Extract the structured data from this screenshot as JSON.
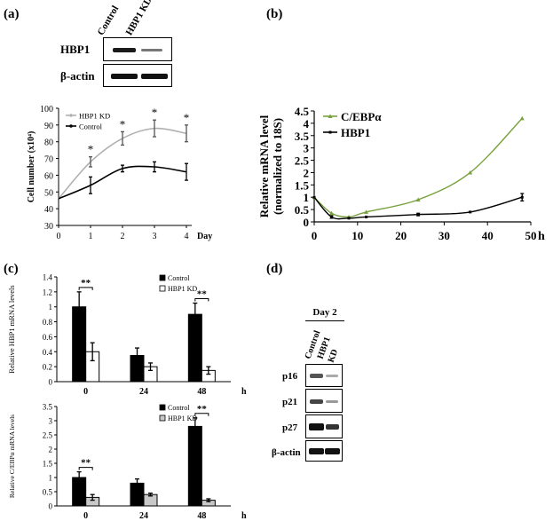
{
  "panels": {
    "a": {
      "label": "(a)",
      "blot": {
        "lanes": [
          "Control",
          "HBP1 KD"
        ],
        "rows": [
          "HBP1",
          "β-actin"
        ]
      }
    },
    "b": {
      "label": "(b)"
    },
    "c": {
      "label": "(c)"
    },
    "d": {
      "label": "(d)",
      "blot": {
        "header": "Day 2",
        "lanes": [
          "Control",
          "HBP1",
          "KD"
        ],
        "rows": [
          "p16",
          "p21",
          "p27",
          "β-actin"
        ]
      }
    }
  },
  "chart_data": [
    {
      "id": "a-growth",
      "type": "line",
      "xlabel": "Day",
      "ylabel": "Cell number (x10⁴)",
      "xlim": [
        0,
        4
      ],
      "ylim": [
        30,
        100
      ],
      "x_ticks": [
        "0",
        "1",
        "2",
        "3",
        "4"
      ],
      "y_ticks": [
        "30",
        "40",
        "50",
        "60",
        "70",
        "80",
        "90",
        "100"
      ],
      "x": [
        0,
        1,
        2,
        3,
        4
      ],
      "series": [
        {
          "name": "HBP1 KD",
          "color": "#b0b0b0",
          "values": [
            46,
            68,
            82,
            88,
            85
          ],
          "errors": [
            0,
            3,
            4,
            5,
            5
          ]
        },
        {
          "name": "Control",
          "color": "#000000",
          "values": [
            46,
            54,
            64,
            65,
            62
          ],
          "errors": [
            0,
            5,
            2,
            3,
            5
          ]
        }
      ],
      "annotations": [
        "*",
        "*",
        "*",
        "*"
      ],
      "legend": "top-left"
    },
    {
      "id": "b-mrna",
      "type": "line",
      "xlabel": "h",
      "ylabel_lines": [
        "Relative mRNA level",
        "(normalized to 18S)"
      ],
      "xlim": [
        0,
        50
      ],
      "ylim": [
        0,
        4.5
      ],
      "x_ticks": [
        "0",
        "10",
        "20",
        "30",
        "40",
        "50"
      ],
      "y_ticks": [
        "0",
        "0.5",
        "1",
        "1.5",
        "2",
        "2.5",
        "3",
        "3.5",
        "4",
        "4.5"
      ],
      "x": [
        0,
        4,
        8,
        12,
        24,
        36,
        48
      ],
      "series": [
        {
          "name": "C/EBPα",
          "color": "#77a13d",
          "values": [
            1.0,
            0.35,
            0.2,
            0.4,
            0.9,
            2.0,
            4.2
          ],
          "errors": [
            0,
            0,
            0,
            0,
            0,
            0,
            0
          ]
        },
        {
          "name": "HBP1",
          "color": "#000000",
          "values": [
            1.0,
            0.2,
            0.15,
            0.2,
            0.3,
            0.4,
            1.0
          ],
          "errors": [
            0,
            0.05,
            0,
            0,
            0.05,
            0,
            0.15
          ]
        }
      ],
      "legend": "top-left"
    },
    {
      "id": "c-hbp1",
      "type": "bar",
      "xlabel": "h",
      "ylabel": "Relative HBP1 mRNA levels",
      "ylim": [
        0,
        1.4
      ],
      "y_ticks": [
        "0",
        "0.2",
        "0.4",
        "0.6",
        "0.8",
        "1",
        "1.2",
        "1.4"
      ],
      "categories": [
        "0",
        "24",
        "48"
      ],
      "series": [
        {
          "name": "Control",
          "color": "#000000",
          "values": [
            1.0,
            0.35,
            0.9
          ],
          "errors": [
            0.2,
            0.1,
            0.15
          ]
        },
        {
          "name": "HBP1 KD",
          "color": "#ffffff",
          "values": [
            0.4,
            0.2,
            0.15
          ],
          "errors": [
            0.12,
            0.05,
            0.05
          ]
        }
      ],
      "annotations": [
        "**",
        "**"
      ],
      "legend": "top-right"
    },
    {
      "id": "c-cebpa",
      "type": "bar",
      "xlabel": "h",
      "ylabel": "Relative C/EBPα mRNA levels",
      "ylim": [
        0,
        3.5
      ],
      "y_ticks": [
        "0",
        "0.5",
        "1",
        "1.5",
        "2",
        "2.5",
        "3",
        "3.5"
      ],
      "categories": [
        "0",
        "24",
        "48"
      ],
      "series": [
        {
          "name": "Control",
          "color": "#000000",
          "values": [
            1.0,
            0.8,
            2.8
          ],
          "errors": [
            0.2,
            0.15,
            0.3
          ]
        },
        {
          "name": "HBP1 KD",
          "color": "#c8c8c8",
          "values": [
            0.3,
            0.4,
            0.2
          ],
          "errors": [
            0.1,
            0.05,
            0.05
          ]
        }
      ],
      "annotations": [
        "**",
        "**"
      ],
      "legend": "top-right"
    }
  ]
}
